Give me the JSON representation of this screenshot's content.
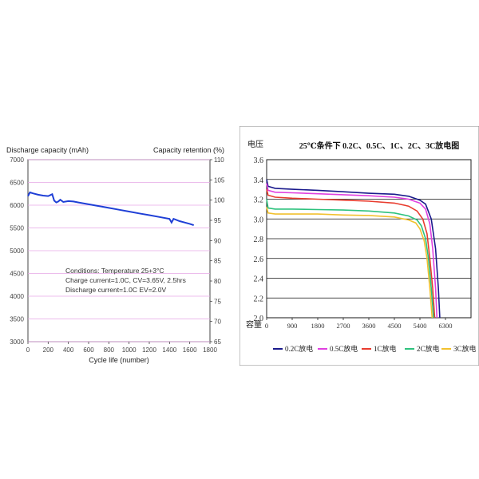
{
  "chart_data": [
    {
      "type": "line",
      "ylabel": "Discharge capacity (mAh)",
      "y2label": "Capacity retention (%)",
      "xlabel": "Cycle life (number)",
      "xlim": [
        0,
        1800
      ],
      "ylim": [
        3000,
        7000
      ],
      "y2lim": [
        65,
        110
      ],
      "xticks": [
        "0",
        "200",
        "400",
        "600",
        "800",
        "1000",
        "1200",
        "1400",
        "1600",
        "1800"
      ],
      "yticks": [
        "3000",
        "3500",
        "4000",
        "4500",
        "5000",
        "5500",
        "6000",
        "6500",
        "7000"
      ],
      "y2ticks": [
        "65",
        "70",
        "75",
        "80",
        "85",
        "90",
        "95",
        "100",
        "105",
        "110"
      ],
      "grid": true,
      "series": [
        {
          "color": "#1f3fd6",
          "x": [
            0,
            20,
            50,
            100,
            150,
            200,
            240,
            260,
            280,
            300,
            320,
            350,
            400,
            450,
            500,
            600,
            700,
            800,
            900,
            1000,
            1100,
            1200,
            1300,
            1400,
            1420,
            1440,
            1500,
            1550,
            1600,
            1640
          ],
          "y": [
            6200,
            6280,
            6260,
            6230,
            6210,
            6200,
            6240,
            6100,
            6060,
            6080,
            6120,
            6070,
            6090,
            6080,
            6060,
            6020,
            5980,
            5940,
            5900,
            5860,
            5820,
            5780,
            5740,
            5700,
            5620,
            5700,
            5650,
            5620,
            5590,
            5560
          ]
        }
      ],
      "annotations": [
        "Conditions: Temperature 25+3°C",
        "Charge current=1.0C, CV=3.65V, 2.5hrs",
        "Discharge current=1.0C EV=2.0V"
      ]
    },
    {
      "type": "line",
      "title": "25℃条件下 0.2C、0.5C、1C、2C、3C放电图",
      "ylabel": "电压",
      "xlabel": "容量",
      "xlim": [
        0,
        7200
      ],
      "ylim": [
        2.0,
        3.6
      ],
      "xticks": [
        "0",
        "900",
        "1800",
        "2700",
        "3600",
        "4500",
        "5400",
        "6300"
      ],
      "yticks": [
        "2.0",
        "2.2",
        "2.4",
        "2.6",
        "2.8",
        "3.0",
        "3.2",
        "3.4",
        "3.6"
      ],
      "grid": true,
      "series": [
        {
          "name": "0.2C放电",
          "color": "#1a1a8c",
          "x": [
            0,
            50,
            300,
            900,
            1800,
            2700,
            3600,
            4500,
            5000,
            5400,
            5600,
            5800,
            5950,
            6050,
            6100
          ],
          "y": [
            3.4,
            3.33,
            3.31,
            3.3,
            3.29,
            3.275,
            3.26,
            3.25,
            3.23,
            3.19,
            3.15,
            3.0,
            2.7,
            2.3,
            2.0
          ]
        },
        {
          "name": "0.5C放电",
          "color": "#e040e0",
          "x": [
            0,
            50,
            300,
            900,
            1800,
            2700,
            3600,
            4500,
            5000,
            5400,
            5600,
            5750,
            5850,
            5950,
            6000
          ],
          "y": [
            3.36,
            3.29,
            3.27,
            3.265,
            3.255,
            3.245,
            3.235,
            3.22,
            3.2,
            3.16,
            3.1,
            2.95,
            2.7,
            2.3,
            2.0
          ]
        },
        {
          "name": "1C放电",
          "color": "#e83c2e",
          "x": [
            0,
            50,
            300,
            900,
            1800,
            2700,
            3600,
            4500,
            5000,
            5300,
            5500,
            5650,
            5750,
            5850,
            5920
          ],
          "y": [
            3.3,
            3.24,
            3.22,
            3.21,
            3.2,
            3.19,
            3.18,
            3.16,
            3.13,
            3.08,
            3.0,
            2.85,
            2.6,
            2.3,
            2.0
          ]
        },
        {
          "name": "2C放电",
          "color": "#2ec27e",
          "x": [
            0,
            50,
            300,
            900,
            1800,
            2700,
            3600,
            4500,
            5000,
            5300,
            5450,
            5600,
            5700,
            5800,
            5880
          ],
          "y": [
            3.2,
            3.11,
            3.1,
            3.1,
            3.095,
            3.09,
            3.08,
            3.06,
            3.03,
            2.99,
            2.93,
            2.8,
            2.6,
            2.3,
            2.0
          ]
        },
        {
          "name": "3C放电",
          "color": "#f2c12e",
          "x": [
            0,
            50,
            300,
            900,
            1800,
            2700,
            3600,
            4500,
            5000,
            5250,
            5400,
            5550,
            5650,
            5750,
            5830
          ],
          "y": [
            3.12,
            3.06,
            3.05,
            3.05,
            3.05,
            3.04,
            3.035,
            3.02,
            2.99,
            2.96,
            2.9,
            2.78,
            2.6,
            2.3,
            2.0
          ]
        }
      ]
    }
  ]
}
